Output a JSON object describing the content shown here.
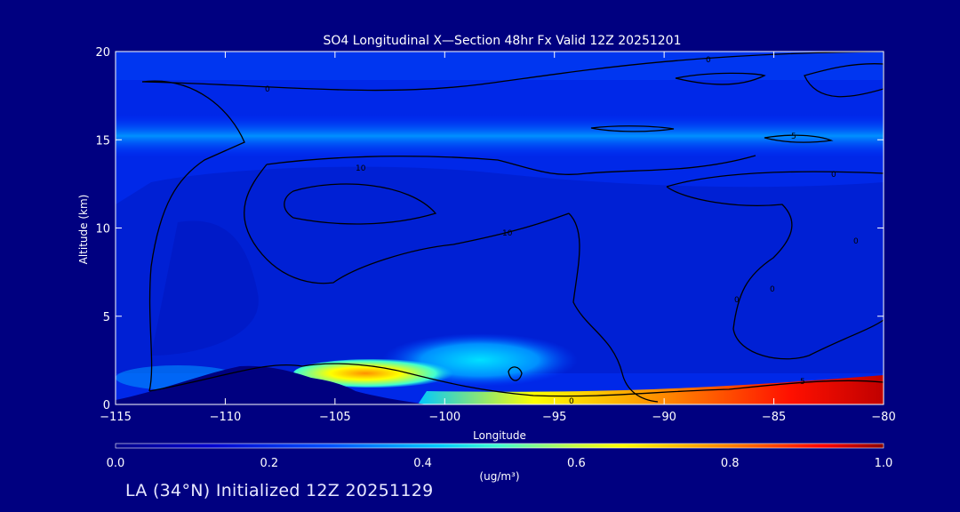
{
  "chart_data": {
    "type": "heatmap",
    "title": "SO4 Longitudinal X—Section 48hr  Fx Valid 12Z 20251201",
    "xlabel": "Longitude",
    "ylabel": "Altitude (km)",
    "xlim": [
      -115,
      -80
    ],
    "ylim": [
      0,
      20
    ],
    "x_ticks": [
      -115,
      -110,
      -105,
      -100,
      -95,
      -90,
      -85,
      -80
    ],
    "y_ticks": [
      0,
      5,
      10,
      15,
      20
    ],
    "colorbar": {
      "label": "(ug/m³)",
      "range": [
        0.0,
        1.0
      ],
      "ticks": [
        "0.0",
        "0.2",
        "0.4",
        "0.6",
        "0.8",
        "1.0"
      ]
    },
    "contour_labels": [
      "0",
      "0",
      "10",
      "10",
      "5",
      "0",
      "0",
      "0",
      "0",
      "5",
      "0"
    ],
    "features": {
      "surface_maximum": {
        "lon_range": [
          -90,
          -80
        ],
        "alt_range": [
          0,
          1
        ],
        "value": 1.0
      },
      "mountain_maximum": {
        "lon_range": [
          -106,
          -101
        ],
        "alt_range": [
          1,
          2
        ],
        "value": 0.65
      },
      "mid_level_plume": {
        "lon_range": [
          -103,
          -94
        ],
        "alt_range": [
          1,
          3
        ],
        "value": 0.4
      },
      "upper_band": {
        "alt_range": [
          14,
          16
        ],
        "value": 0.12
      }
    },
    "grid": false,
    "colormap": [
      "#00008b",
      "#0000ff",
      "#00b0ff",
      "#00ffff",
      "#ffff00",
      "#ff7f00",
      "#ff0000",
      "#8b0000"
    ]
  },
  "footer": {
    "text": "LA (34°N) Initialized 12Z 20251129"
  }
}
